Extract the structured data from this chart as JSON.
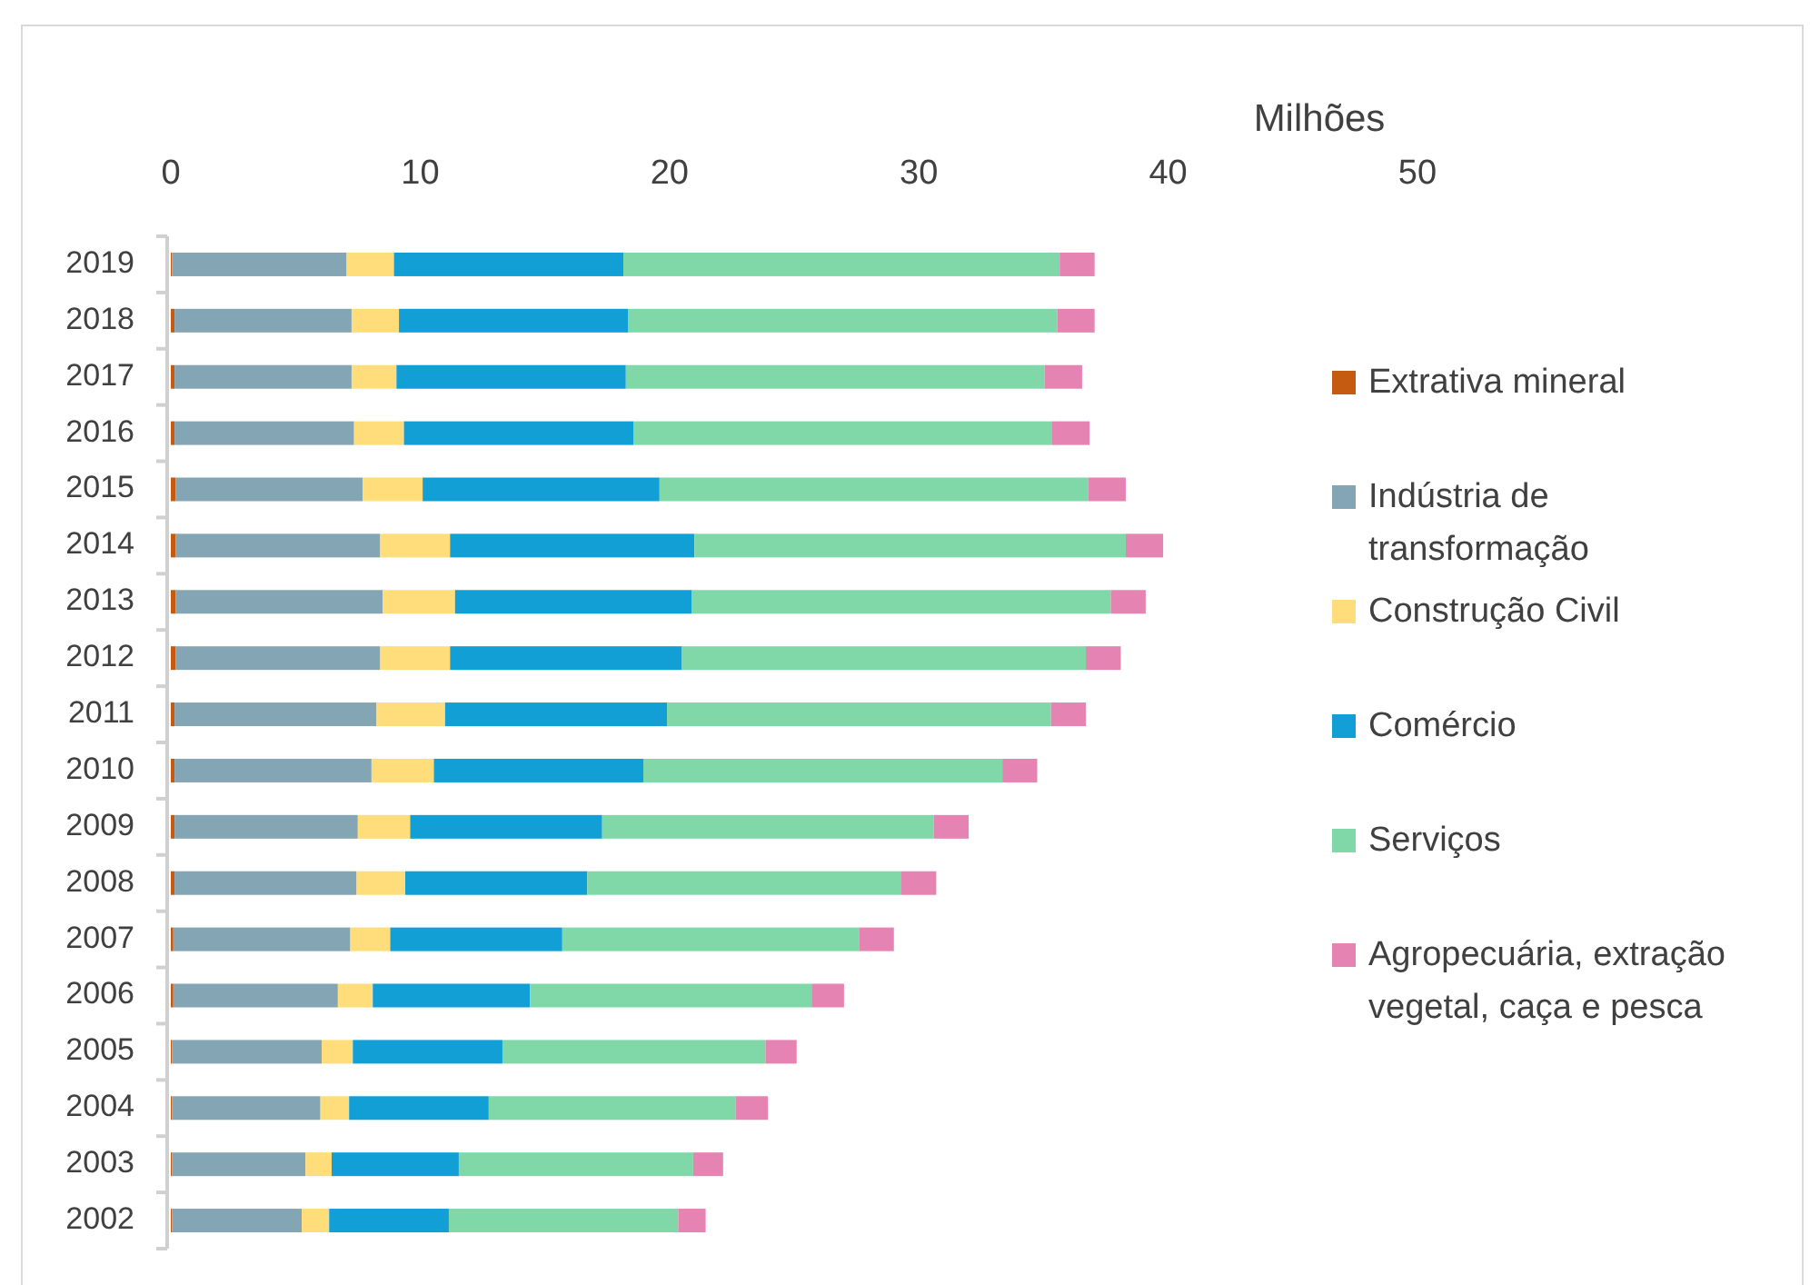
{
  "chart_data": {
    "type": "bar",
    "orientation": "horizontal",
    "stacked": true,
    "xlabel": "Milhões",
    "categories": [
      "2019",
      "2018",
      "2017",
      "2016",
      "2015",
      "2014",
      "2013",
      "2012",
      "2011",
      "2010",
      "2009",
      "2008",
      "2007",
      "2006",
      "2005",
      "2004",
      "2003",
      "2002"
    ],
    "xlim": [
      0,
      50
    ],
    "xticks": [
      0,
      10,
      20,
      30,
      40,
      50
    ],
    "grid": false,
    "legend": "right",
    "series": [
      {
        "name": "Extrativa mineral",
        "color": "#c55a11",
        "values": [
          0.05,
          0.15,
          0.15,
          0.15,
          0.2,
          0.2,
          0.2,
          0.2,
          0.15,
          0.15,
          0.15,
          0.15,
          0.1,
          0.1,
          0.05,
          0.05,
          0.05,
          0.05
        ]
      },
      {
        "name": "Indústria de transformação",
        "color": "#84a6b4",
        "values": [
          7.0,
          7.1,
          7.1,
          7.2,
          7.5,
          8.2,
          8.3,
          8.2,
          8.1,
          7.9,
          7.35,
          7.3,
          7.1,
          6.6,
          6.0,
          5.95,
          5.35,
          5.2
        ]
      },
      {
        "name": "Construção Civil",
        "color": "#ffdd7a",
        "values": [
          1.9,
          1.9,
          1.8,
          2.0,
          2.4,
          2.8,
          2.9,
          2.8,
          2.75,
          2.5,
          2.1,
          1.95,
          1.6,
          1.4,
          1.25,
          1.15,
          1.05,
          1.1
        ]
      },
      {
        "name": "Comércio",
        "color": "#119fd6",
        "values": [
          9.2,
          9.2,
          9.2,
          9.2,
          9.5,
          9.8,
          9.5,
          9.3,
          8.9,
          8.4,
          7.7,
          7.3,
          6.9,
          6.3,
          6.0,
          5.6,
          5.1,
          4.8
        ]
      },
      {
        "name": "Serviços",
        "color": "#80d8a8",
        "values": [
          17.5,
          17.2,
          16.8,
          16.8,
          17.2,
          17.3,
          16.8,
          16.2,
          15.4,
          14.4,
          13.3,
          12.6,
          11.9,
          11.3,
          10.55,
          9.9,
          9.4,
          9.2
        ]
      },
      {
        "name": "Agropecuária, extração vegetal, caça e pesca",
        "color": "#e583b2",
        "values": [
          1.4,
          1.5,
          1.5,
          1.5,
          1.5,
          1.5,
          1.4,
          1.4,
          1.4,
          1.4,
          1.4,
          1.4,
          1.4,
          1.3,
          1.25,
          1.3,
          1.2,
          1.1
        ]
      }
    ]
  }
}
